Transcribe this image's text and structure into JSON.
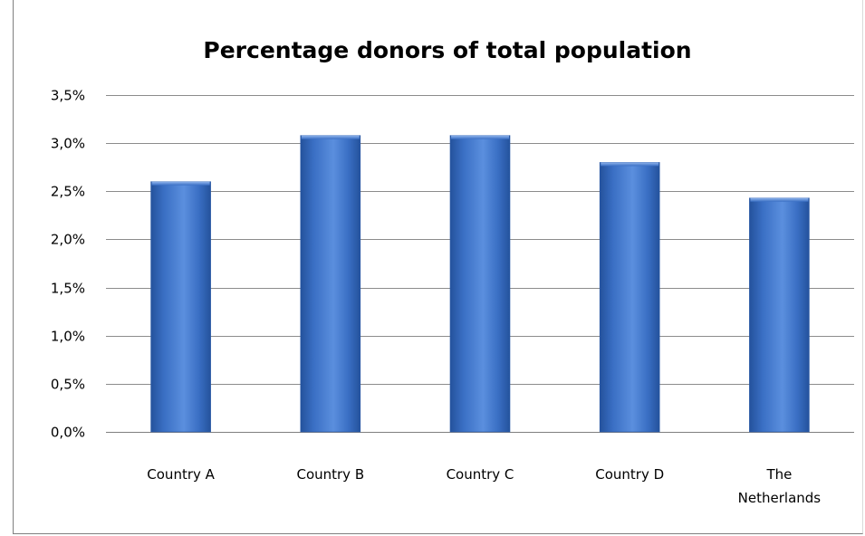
{
  "chart_data": {
    "type": "bar",
    "title": "Percentage donors of total population",
    "categories": [
      [
        "Country A"
      ],
      [
        "Country B"
      ],
      [
        "Country C"
      ],
      [
        "Country D"
      ],
      [
        "The",
        "Netherlands"
      ]
    ],
    "series": [
      {
        "values": [
          2.6,
          3.08,
          3.08,
          2.8,
          2.43
        ]
      }
    ],
    "ylim": [
      0,
      3.5
    ],
    "yticks": [
      "0,0%",
      "0,5%",
      "1,0%",
      "1,5%",
      "2,0%",
      "2,5%",
      "3,0%",
      "3,5%"
    ],
    "ytick_values": [
      0,
      0.5,
      1.0,
      1.5,
      2.0,
      2.5,
      3.0,
      3.5
    ],
    "grid": true,
    "legend": "none",
    "colors": {
      "bar": "#3a6fc4",
      "bar_light": "#5b8fde",
      "bar_dark": "#24529c",
      "grid": "#7f7f7f"
    }
  }
}
